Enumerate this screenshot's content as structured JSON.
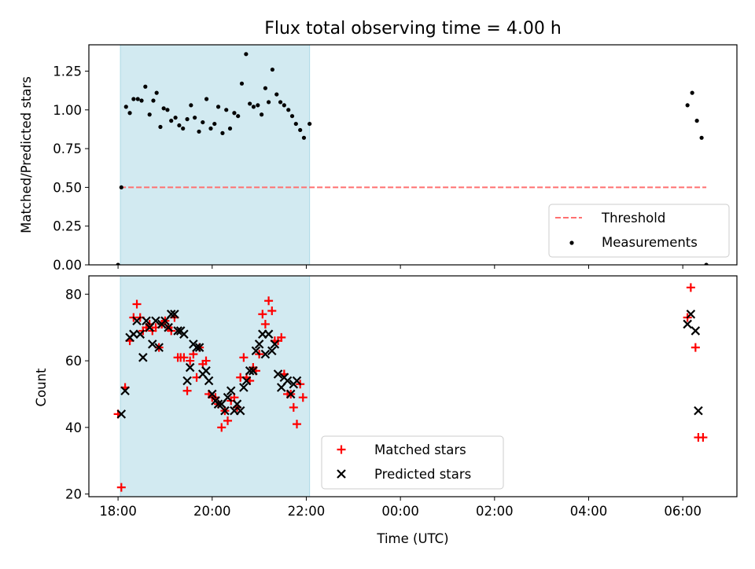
{
  "chart_data": [
    {
      "type": "scatter",
      "title": "Flux total observing time = 4.00 h",
      "ylabel": "Matched/Predicted stars",
      "xlabel": "",
      "x_unit": "hours since 18:00 UTC on the first night",
      "xlim": [
        -0.62,
        13.15
      ],
      "ylim": [
        0.0,
        1.42
      ],
      "x_tick_labels": [
        "18:00",
        "20:00",
        "22:00",
        "00:00",
        "02:00",
        "04:00",
        "06:00"
      ],
      "x_tick_values": [
        0,
        2,
        4,
        6,
        8,
        10,
        12
      ],
      "x_tick_labels_visible": false,
      "y_tick_labels": [
        "0.00",
        "0.25",
        "0.50",
        "0.75",
        "1.00",
        "1.25"
      ],
      "y_tick_values": [
        0.0,
        0.25,
        0.5,
        0.75,
        1.0,
        1.25
      ],
      "shaded_span": {
        "x": [
          0.05,
          4.07
        ],
        "color": "#add8e6"
      },
      "threshold": {
        "name": "Threshold",
        "value": 0.5,
        "x": [
          0.05,
          12.5
        ],
        "color": "#ff7070"
      },
      "legend": {
        "placement": "lower right",
        "entries": [
          "Threshold",
          "Measurements"
        ]
      },
      "series": [
        {
          "name": "Measurements",
          "marker": "dot",
          "color": "#000000",
          "points": [
            [
              0.0,
              0.0
            ],
            [
              0.07,
              0.5
            ],
            [
              0.17,
              1.02
            ],
            [
              0.25,
              0.98
            ],
            [
              0.33,
              1.07
            ],
            [
              0.42,
              1.07
            ],
            [
              0.5,
              1.06
            ],
            [
              0.58,
              1.15
            ],
            [
              0.67,
              0.97
            ],
            [
              0.75,
              1.06
            ],
            [
              0.82,
              1.11
            ],
            [
              0.9,
              0.89
            ],
            [
              0.97,
              1.01
            ],
            [
              1.05,
              1.0
            ],
            [
              1.13,
              0.93
            ],
            [
              1.22,
              0.95
            ],
            [
              1.3,
              0.9
            ],
            [
              1.38,
              0.88
            ],
            [
              1.47,
              0.94
            ],
            [
              1.55,
              1.03
            ],
            [
              1.63,
              0.95
            ],
            [
              1.72,
              0.86
            ],
            [
              1.8,
              0.92
            ],
            [
              1.88,
              1.07
            ],
            [
              1.97,
              0.88
            ],
            [
              2.05,
              0.91
            ],
            [
              2.13,
              1.02
            ],
            [
              2.22,
              0.85
            ],
            [
              2.3,
              1.0
            ],
            [
              2.38,
              0.88
            ],
            [
              2.47,
              0.98
            ],
            [
              2.55,
              0.96
            ],
            [
              2.63,
              1.17
            ],
            [
              2.72,
              1.36
            ],
            [
              2.8,
              1.04
            ],
            [
              2.88,
              1.02
            ],
            [
              2.97,
              1.03
            ],
            [
              3.05,
              0.97
            ],
            [
              3.13,
              1.14
            ],
            [
              3.2,
              1.05
            ],
            [
              3.28,
              1.26
            ],
            [
              3.37,
              1.1
            ],
            [
              3.45,
              1.05
            ],
            [
              3.53,
              1.03
            ],
            [
              3.62,
              1.0
            ],
            [
              3.7,
              0.96
            ],
            [
              3.78,
              0.91
            ],
            [
              3.87,
              0.87
            ],
            [
              3.95,
              0.82
            ],
            [
              4.07,
              0.91
            ],
            [
              12.1,
              1.03
            ],
            [
              12.2,
              1.11
            ],
            [
              12.3,
              0.93
            ],
            [
              12.4,
              0.82
            ],
            [
              12.5,
              0.0
            ]
          ]
        }
      ]
    },
    {
      "type": "scatter",
      "title": "",
      "ylabel": "Count",
      "xlabel": "Time (UTC)",
      "x_unit": "hours since 18:00 UTC on the first night",
      "xlim": [
        -0.62,
        13.15
      ],
      "ylim": [
        19.2,
        85.5
      ],
      "x_tick_labels": [
        "18:00",
        "20:00",
        "22:00",
        "00:00",
        "02:00",
        "04:00",
        "06:00"
      ],
      "x_tick_values": [
        0,
        2,
        4,
        6,
        8,
        10,
        12
      ],
      "y_tick_labels": [
        "20",
        "40",
        "60",
        "80"
      ],
      "y_tick_values": [
        20,
        40,
        60,
        80
      ],
      "shaded_span": {
        "x": [
          0.05,
          4.07
        ],
        "color": "#add8e6"
      },
      "legend": {
        "placement": "lower center",
        "entries": [
          "Matched stars",
          "Predicted stars"
        ]
      },
      "series": [
        {
          "name": "Matched stars",
          "marker": "plus",
          "color": "#ff0000",
          "points": [
            [
              0.0,
              44
            ],
            [
              0.07,
              22
            ],
            [
              0.15,
              52
            ],
            [
              0.25,
              66
            ],
            [
              0.33,
              73
            ],
            [
              0.4,
              77
            ],
            [
              0.47,
              73
            ],
            [
              0.53,
              69
            ],
            [
              0.6,
              70
            ],
            [
              0.67,
              71
            ],
            [
              0.73,
              69
            ],
            [
              0.8,
              70
            ],
            [
              0.87,
              64
            ],
            [
              0.93,
              71
            ],
            [
              1.0,
              72
            ],
            [
              1.07,
              70
            ],
            [
              1.13,
              69
            ],
            [
              1.2,
              73
            ],
            [
              1.27,
              61
            ],
            [
              1.33,
              61
            ],
            [
              1.4,
              61
            ],
            [
              1.47,
              51
            ],
            [
              1.53,
              60
            ],
            [
              1.6,
              62
            ],
            [
              1.67,
              55
            ],
            [
              1.73,
              64
            ],
            [
              1.8,
              59
            ],
            [
              1.87,
              60
            ],
            [
              1.93,
              50
            ],
            [
              2.0,
              49
            ],
            [
              2.07,
              49
            ],
            [
              2.13,
              47
            ],
            [
              2.2,
              40
            ],
            [
              2.27,
              45
            ],
            [
              2.33,
              42
            ],
            [
              2.4,
              48
            ],
            [
              2.47,
              49
            ],
            [
              2.53,
              46
            ],
            [
              2.6,
              55
            ],
            [
              2.67,
              61
            ],
            [
              2.73,
              55
            ],
            [
              2.8,
              54
            ],
            [
              2.87,
              58
            ],
            [
              2.93,
              57
            ],
            [
              3.0,
              62
            ],
            [
              3.07,
              74
            ],
            [
              3.13,
              71
            ],
            [
              3.2,
              78
            ],
            [
              3.27,
              75
            ],
            [
              3.33,
              66
            ],
            [
              3.4,
              66
            ],
            [
              3.47,
              67
            ],
            [
              3.53,
              56
            ],
            [
              3.6,
              50
            ],
            [
              3.67,
              50
            ],
            [
              3.73,
              46
            ],
            [
              3.8,
              41
            ],
            [
              3.87,
              53
            ],
            [
              3.93,
              49
            ],
            [
              12.1,
              73
            ],
            [
              12.17,
              82
            ],
            [
              12.27,
              64
            ],
            [
              12.33,
              37
            ],
            [
              12.43,
              37
            ]
          ]
        },
        {
          "name": "Predicted stars",
          "marker": "x",
          "color": "#000000",
          "points": [
            [
              0.07,
              44
            ],
            [
              0.15,
              51
            ],
            [
              0.25,
              67
            ],
            [
              0.33,
              68
            ],
            [
              0.4,
              72
            ],
            [
              0.47,
              68
            ],
            [
              0.53,
              61
            ],
            [
              0.6,
              72
            ],
            [
              0.67,
              70
            ],
            [
              0.73,
              65
            ],
            [
              0.8,
              72
            ],
            [
              0.87,
              64
            ],
            [
              0.93,
              71
            ],
            [
              1.0,
              72
            ],
            [
              1.07,
              70
            ],
            [
              1.13,
              74
            ],
            [
              1.2,
              74
            ],
            [
              1.27,
              69
            ],
            [
              1.33,
              69
            ],
            [
              1.4,
              68
            ],
            [
              1.47,
              54
            ],
            [
              1.53,
              58
            ],
            [
              1.6,
              65
            ],
            [
              1.67,
              64
            ],
            [
              1.73,
              64
            ],
            [
              1.8,
              56
            ],
            [
              1.87,
              57
            ],
            [
              1.93,
              54
            ],
            [
              2.0,
              50
            ],
            [
              2.07,
              48
            ],
            [
              2.13,
              47
            ],
            [
              2.2,
              47
            ],
            [
              2.27,
              45
            ],
            [
              2.33,
              49
            ],
            [
              2.4,
              51
            ],
            [
              2.47,
              45
            ],
            [
              2.53,
              47
            ],
            [
              2.6,
              45
            ],
            [
              2.67,
              52
            ],
            [
              2.73,
              54
            ],
            [
              2.8,
              57
            ],
            [
              2.87,
              57
            ],
            [
              2.93,
              63
            ],
            [
              3.0,
              65
            ],
            [
              3.07,
              68
            ],
            [
              3.13,
              62
            ],
            [
              3.2,
              68
            ],
            [
              3.27,
              63
            ],
            [
              3.33,
              65
            ],
            [
              3.4,
              56
            ],
            [
              3.47,
              52
            ],
            [
              3.53,
              55
            ],
            [
              3.6,
              54
            ],
            [
              3.67,
              50
            ],
            [
              3.73,
              53
            ],
            [
              3.8,
              54
            ],
            [
              12.1,
              71
            ],
            [
              12.17,
              74
            ],
            [
              12.27,
              69
            ],
            [
              12.33,
              45
            ]
          ]
        }
      ]
    }
  ]
}
